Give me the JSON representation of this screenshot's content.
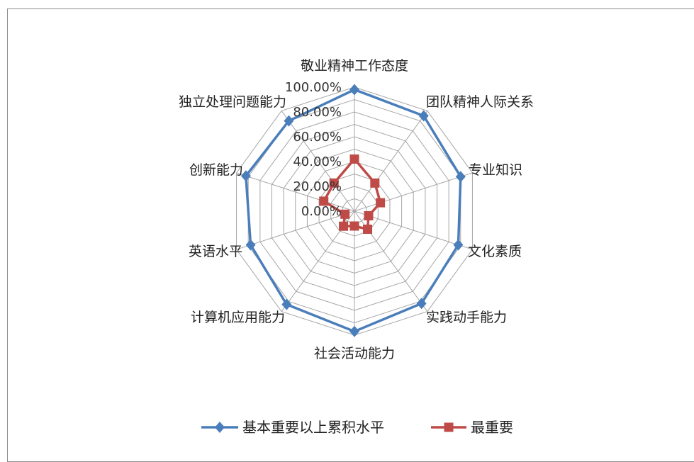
{
  "chart_data": {
    "type": "radar",
    "categories": [
      "敬业精神工作态度",
      "团队精神人际关系",
      "专业知识",
      "文化素质",
      "实践动手能力",
      "社会活动能力",
      "计算机应用能力",
      "英语水平",
      "创新能力",
      "独立处理问题能力"
    ],
    "series": [
      {
        "name": "基本重要以上累积水平",
        "color": "#4a7ebb",
        "values": [
          98,
          95,
          90,
          88,
          92,
          97,
          93,
          88,
          92,
          90
        ]
      },
      {
        "name": "最重要",
        "color": "#be4b48",
        "values": [
          42,
          28,
          22,
          12,
          18,
          12,
          15,
          8,
          26,
          28
        ]
      }
    ],
    "r_ticks": [
      "0.00%",
      "20.00%",
      "40.00%",
      "60.00%",
      "80.00%",
      "100.00%"
    ],
    "rlim": [
      0,
      100
    ],
    "grid": true,
    "legend_position": "bottom"
  }
}
